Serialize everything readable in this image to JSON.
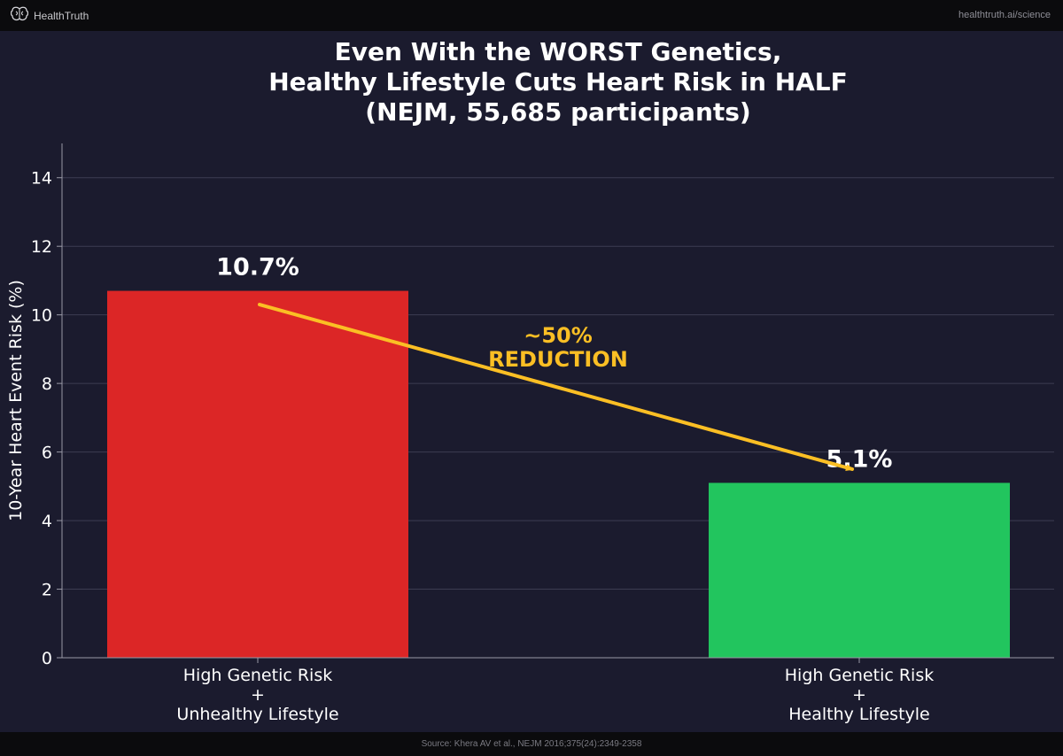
{
  "header": {
    "brand": "HealthTruth",
    "url": "healthtruth.ai/science"
  },
  "footer": {
    "source": "Source: Khera AV et al., NEJM 2016;375(24):2349-2358"
  },
  "colors": {
    "background": "#1b1b2e",
    "bar_unhealthy": "#dc2626",
    "bar_healthy": "#22c55e",
    "arrow": "#fbbf24",
    "text": "#ffffff",
    "grid": "#3d3d52"
  },
  "chart_data": {
    "type": "bar",
    "title": [
      "Even With the WORST Genetics,",
      "Healthy Lifestyle Cuts Heart Risk in HALF",
      "(NEJM, 55,685 participants)"
    ],
    "ylabel": "10-Year Heart Event Risk (%)",
    "xlabel": "",
    "ylim": [
      0,
      15
    ],
    "yticks": [
      0,
      2,
      4,
      6,
      8,
      10,
      12,
      14
    ],
    "grid": true,
    "categories": [
      [
        "High Genetic Risk",
        "+",
        "Unhealthy Lifestyle"
      ],
      [
        "High Genetic Risk",
        "+",
        "Healthy Lifestyle"
      ]
    ],
    "values": [
      10.7,
      5.1
    ],
    "value_labels": [
      "10.7%",
      "5.1%"
    ],
    "annotation": {
      "lines": [
        "~50%",
        "REDUCTION"
      ],
      "arrow_from": {
        "category_index": 0,
        "value": 10.3
      },
      "arrow_to": {
        "category_index": 1,
        "value": 5.5
      }
    }
  }
}
